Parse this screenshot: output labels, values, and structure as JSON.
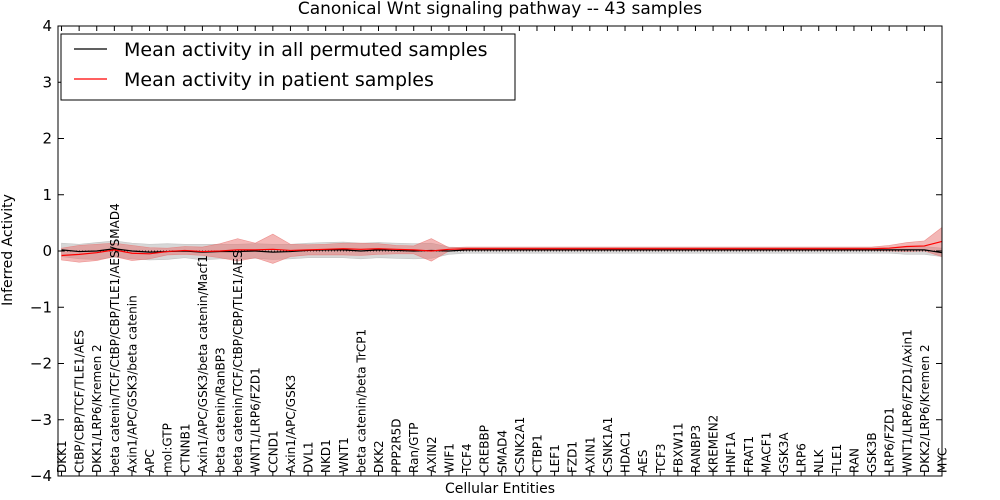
{
  "chart_data": {
    "type": "line",
    "title": "Canonical Wnt signaling pathway -- 43 samples",
    "xlabel": "Cellular Entities",
    "ylabel": "Inferred Activity",
    "ylim": [
      -4,
      4
    ],
    "yticks": [
      {
        "value": 4,
        "label": "4"
      },
      {
        "value": 3,
        "label": "3"
      },
      {
        "value": 2,
        "label": "2"
      },
      {
        "value": 1,
        "label": "1"
      },
      {
        "value": 0,
        "label": "0"
      },
      {
        "value": -1,
        "label": "−1"
      },
      {
        "value": -2,
        "label": "−2"
      },
      {
        "value": -3,
        "label": "−3"
      },
      {
        "value": -4,
        "label": "−4"
      }
    ],
    "grid": false,
    "legend_position": "top-left",
    "categories": [
      "DKK1",
      "CtBP/CBP/TCF/TLE1/AES",
      "DKK1/LRP6/Kremen 2",
      "beta catenin/TCF/CtBP/CBP/TLE1/AES/SMAD4",
      "Axin1/APC/GSK3/beta catenin",
      "APC",
      "mol:GTP",
      "CTNNB1",
      "Axin1/APC/GSK3/beta catenin/Macf1",
      "beta catenin/RanBP3",
      "beta catenin/TCF/CtBP/CBP/TLE1/AES",
      "WNT1/LRP6/FZD1",
      "CCND1",
      "Axin1/APC/GSK3",
      "DVL1",
      "NKD1",
      "WNT1",
      "beta catenin/beta TrCP1",
      "DKK2",
      "PPP2R5D",
      "Ran/GTP",
      "AXIN2",
      "WIF1",
      "TCF4",
      "CREBBP",
      "SMAD4",
      "CSNK2A1",
      "CTBP1",
      "LEF1",
      "FZD1",
      "AXIN1",
      "CSNK1A1",
      "HDAC1",
      "AES",
      "TCF3",
      "FBXW11",
      "RANBP3",
      "KREMEN2",
      "HNF1A",
      "FRAT1",
      "MACF1",
      "GSK3A",
      "LRP6",
      "NLK",
      "TLE1",
      "RAN",
      "GSK3B",
      "LRP6/FZD1",
      "WNT1/LRP6/FZD1/Axin1",
      "DKK2/LRP6/Kremen 2",
      "MYC"
    ],
    "series": [
      {
        "name": "Mean activity in all permuted samples",
        "color": "#000000",
        "band_color": "#b0b0b0",
        "values": [
          0.02,
          -0.01,
          0.0,
          0.04,
          0.0,
          -0.02,
          -0.01,
          0.0,
          -0.02,
          -0.01,
          -0.01,
          0.0,
          -0.02,
          -0.01,
          0.01,
          0.02,
          0.02,
          0.0,
          0.02,
          0.01,
          0.0,
          0.01,
          0.0,
          0.02,
          0.02,
          0.02,
          0.02,
          0.02,
          0.02,
          0.02,
          0.02,
          0.02,
          0.02,
          0.02,
          0.02,
          0.02,
          0.02,
          0.02,
          0.02,
          0.02,
          0.02,
          0.02,
          0.02,
          0.02,
          0.02,
          0.02,
          0.02,
          0.02,
          0.02,
          0.02,
          -0.03
        ],
        "lower": [
          -0.1,
          -0.14,
          -0.15,
          -0.11,
          -0.14,
          -0.16,
          -0.15,
          -0.12,
          -0.16,
          -0.14,
          -0.14,
          -0.13,
          -0.15,
          -0.14,
          -0.12,
          -0.12,
          -0.12,
          -0.14,
          -0.12,
          -0.13,
          -0.14,
          -0.13,
          -0.06,
          -0.04,
          -0.04,
          -0.04,
          -0.04,
          -0.04,
          -0.04,
          -0.04,
          -0.04,
          -0.04,
          -0.04,
          -0.04,
          -0.04,
          -0.04,
          -0.04,
          -0.04,
          -0.04,
          -0.04,
          -0.04,
          -0.04,
          -0.04,
          -0.04,
          -0.04,
          -0.04,
          -0.04,
          -0.04,
          -0.06,
          -0.06,
          -0.1
        ],
        "upper": [
          0.14,
          0.12,
          0.15,
          0.18,
          0.14,
          0.12,
          0.13,
          0.12,
          0.12,
          0.12,
          0.12,
          0.13,
          0.12,
          0.12,
          0.14,
          0.15,
          0.16,
          0.14,
          0.15,
          0.14,
          0.13,
          0.14,
          0.07,
          0.06,
          0.06,
          0.06,
          0.06,
          0.06,
          0.06,
          0.06,
          0.06,
          0.06,
          0.06,
          0.06,
          0.06,
          0.06,
          0.06,
          0.06,
          0.06,
          0.06,
          0.06,
          0.06,
          0.06,
          0.06,
          0.06,
          0.06,
          0.06,
          0.06,
          0.08,
          0.08,
          0.05
        ]
      },
      {
        "name": "Mean activity in patient samples",
        "color": "#ff0000",
        "band_color": "#e8706e",
        "values": [
          -0.08,
          -0.06,
          -0.03,
          0.02,
          -0.04,
          -0.05,
          -0.01,
          0.01,
          -0.01,
          0.0,
          0.02,
          0.02,
          0.03,
          0.01,
          0.02,
          0.03,
          0.04,
          0.03,
          0.04,
          0.03,
          0.02,
          0.0,
          0.03,
          0.04,
          0.04,
          0.04,
          0.04,
          0.04,
          0.04,
          0.04,
          0.04,
          0.04,
          0.04,
          0.04,
          0.04,
          0.04,
          0.04,
          0.04,
          0.04,
          0.04,
          0.04,
          0.04,
          0.04,
          0.04,
          0.04,
          0.04,
          0.04,
          0.05,
          0.08,
          0.09,
          0.17
        ],
        "lower": [
          -0.16,
          -0.2,
          -0.17,
          -0.1,
          -0.17,
          -0.14,
          -0.07,
          -0.06,
          -0.08,
          -0.12,
          -0.18,
          -0.12,
          -0.22,
          -0.1,
          -0.07,
          -0.07,
          -0.07,
          -0.08,
          -0.06,
          -0.05,
          -0.05,
          -0.18,
          0.0,
          0.01,
          0.01,
          0.01,
          0.01,
          0.01,
          0.01,
          0.01,
          0.01,
          0.01,
          0.01,
          0.01,
          0.01,
          0.01,
          0.01,
          0.01,
          0.01,
          0.01,
          0.01,
          0.01,
          0.01,
          0.01,
          0.01,
          0.01,
          0.01,
          0.0,
          -0.01,
          0.0,
          -0.1
        ],
        "upper": [
          0.05,
          0.1,
          0.12,
          0.14,
          0.1,
          0.06,
          0.05,
          0.08,
          0.07,
          0.13,
          0.22,
          0.14,
          0.3,
          0.12,
          0.11,
          0.12,
          0.14,
          0.14,
          0.13,
          0.1,
          0.09,
          0.22,
          0.06,
          0.07,
          0.07,
          0.07,
          0.07,
          0.07,
          0.07,
          0.07,
          0.07,
          0.07,
          0.07,
          0.07,
          0.07,
          0.07,
          0.07,
          0.07,
          0.07,
          0.07,
          0.07,
          0.07,
          0.07,
          0.07,
          0.07,
          0.07,
          0.07,
          0.1,
          0.15,
          0.18,
          0.42
        ]
      }
    ]
  }
}
